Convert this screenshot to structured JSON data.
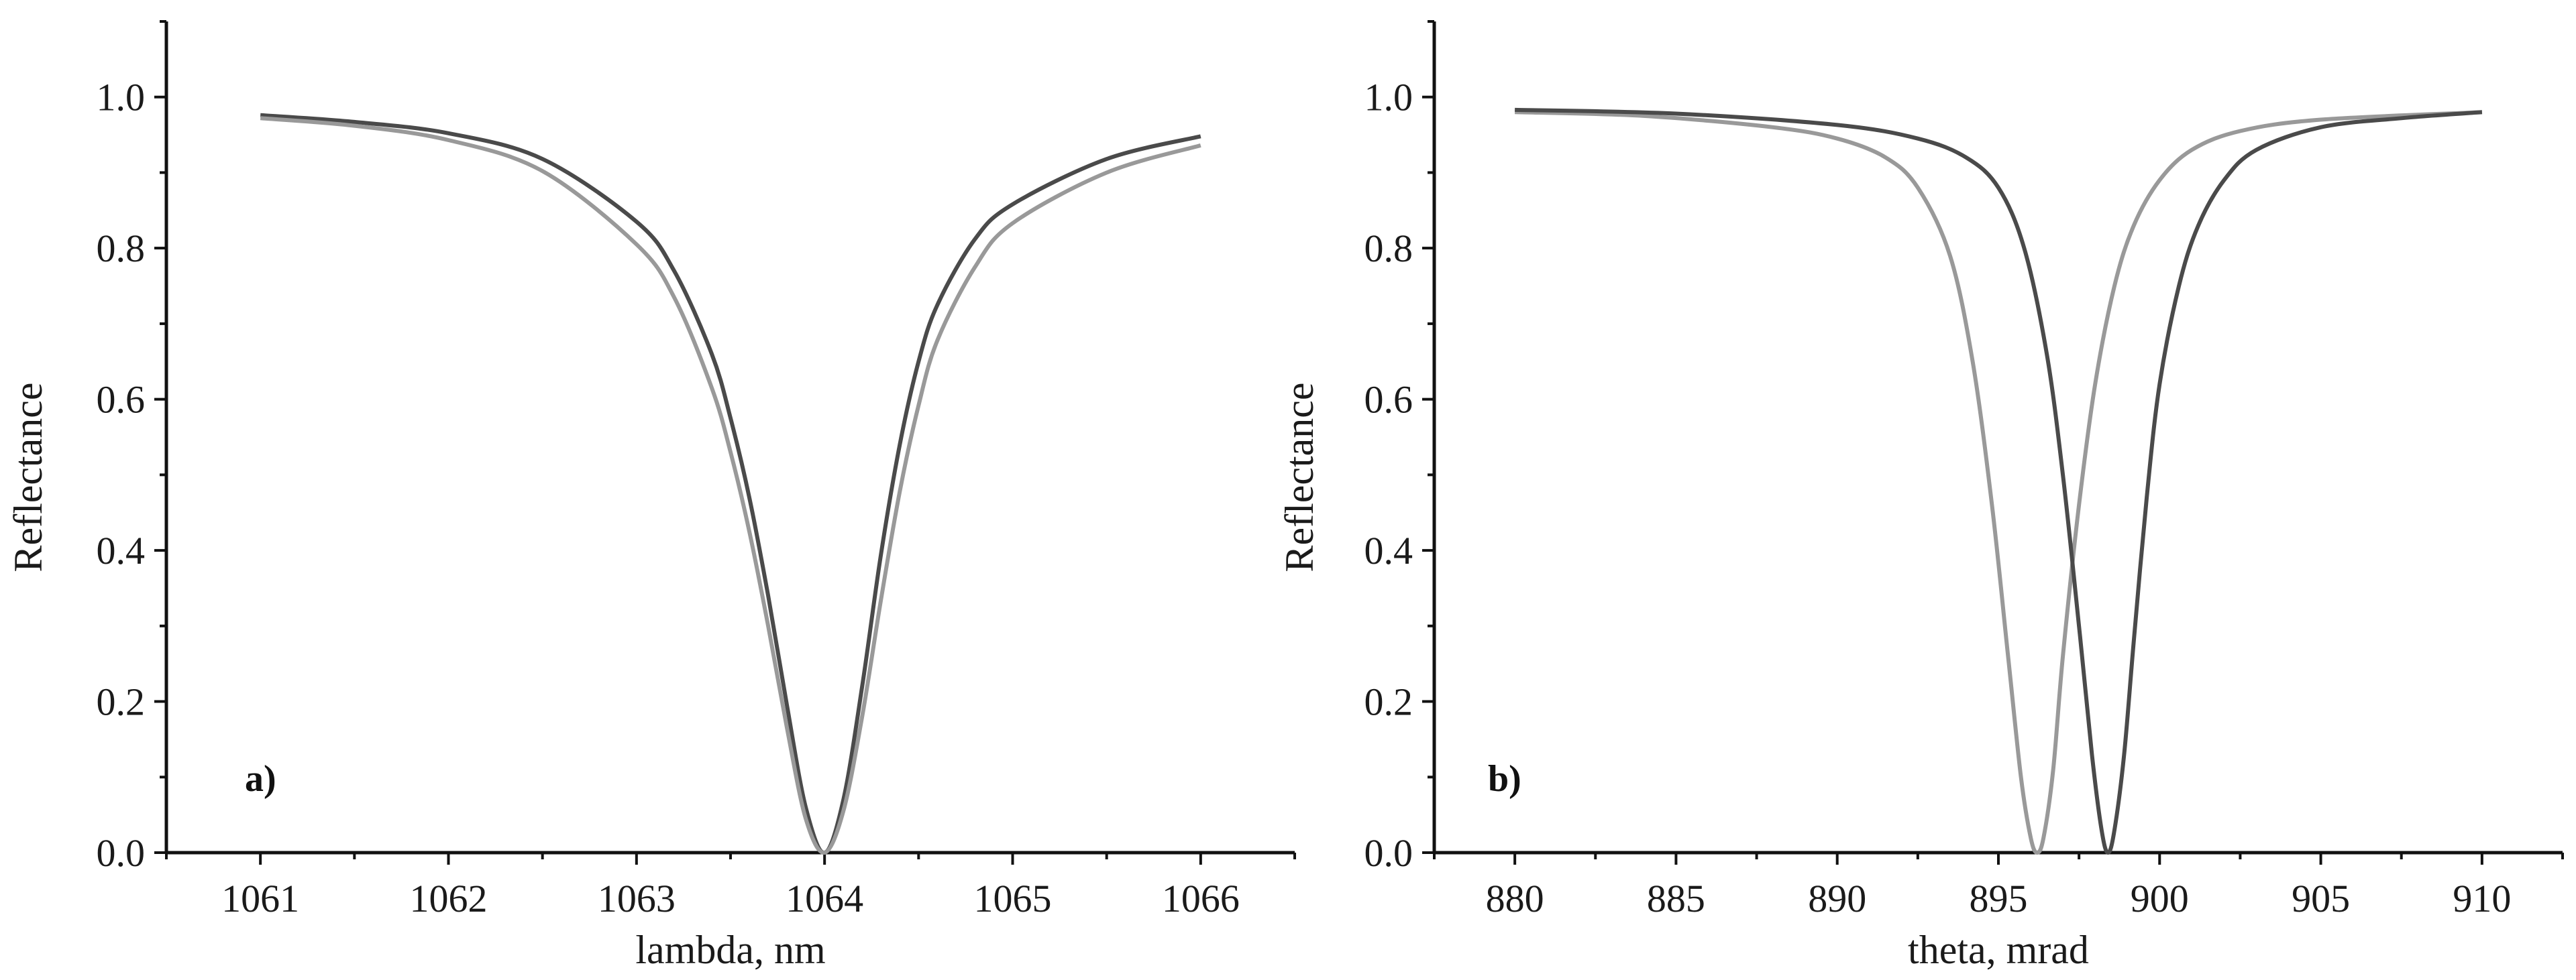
{
  "chart_data": [
    {
      "type": "line",
      "panel_label": "a)",
      "xlabel": "lambda, nm",
      "ylabel": "Reflectance",
      "xlim": [
        1060.5,
        1066.5
      ],
      "ylim": [
        0.0,
        1.1
      ],
      "xticks": [
        1061,
        1062,
        1063,
        1064,
        1065,
        1066
      ],
      "xtick_labels": [
        "1061",
        "1062",
        "1063",
        "1064",
        "1065",
        "1066"
      ],
      "yticks": [
        0.0,
        0.2,
        0.4,
        0.6,
        0.8,
        1.0
      ],
      "ytick_labels": [
        "0.0",
        "0.2",
        "0.4",
        "0.6",
        "0.8",
        "1.0"
      ],
      "series": [
        {
          "name": "dark",
          "color": "#4a4a4a",
          "x": [
            1061.0,
            1061.5,
            1062.0,
            1062.5,
            1063.0,
            1063.2,
            1063.4,
            1063.5,
            1063.6,
            1063.7,
            1063.8,
            1063.9,
            1064.0,
            1064.1,
            1064.2,
            1064.3,
            1064.4,
            1064.5,
            1064.6,
            1064.8,
            1065.0,
            1065.5,
            1066.0
          ],
          "y": [
            0.976,
            0.967,
            0.952,
            0.918,
            0.835,
            0.77,
            0.66,
            0.575,
            0.47,
            0.34,
            0.195,
            0.06,
            0.0,
            0.07,
            0.22,
            0.395,
            0.54,
            0.65,
            0.725,
            0.812,
            0.858,
            0.918,
            0.948
          ]
        },
        {
          "name": "light",
          "color": "#999999",
          "x": [
            1061.0,
            1061.5,
            1062.0,
            1062.5,
            1063.0,
            1063.2,
            1063.4,
            1063.5,
            1063.6,
            1063.7,
            1063.8,
            1063.9,
            1064.0,
            1064.1,
            1064.2,
            1064.3,
            1064.4,
            1064.5,
            1064.6,
            1064.8,
            1065.0,
            1065.5,
            1066.0
          ],
          "y": [
            0.972,
            0.962,
            0.943,
            0.902,
            0.805,
            0.735,
            0.615,
            0.53,
            0.425,
            0.3,
            0.165,
            0.045,
            0.0,
            0.055,
            0.18,
            0.335,
            0.478,
            0.592,
            0.678,
            0.775,
            0.833,
            0.9,
            0.936
          ]
        }
      ]
    },
    {
      "type": "line",
      "panel_label": "b)",
      "xlabel": "theta, mrad",
      "ylabel": "Reflectance",
      "xlim": [
        877.5,
        912.5
      ],
      "ylim": [
        0.0,
        1.1
      ],
      "xticks": [
        880,
        885,
        890,
        895,
        900,
        905,
        910
      ],
      "xtick_labels": [
        "880",
        "885",
        "890",
        "895",
        "900",
        "905",
        "910"
      ],
      "yticks": [
        0.0,
        0.2,
        0.4,
        0.6,
        0.8,
        1.0
      ],
      "ytick_labels": [
        "0.0",
        "0.2",
        "0.4",
        "0.6",
        "0.8",
        "1.0"
      ],
      "series": [
        {
          "name": "light",
          "color": "#999999",
          "x": [
            880.0,
            884.0,
            888.0,
            890.0,
            891.5,
            892.5,
            893.5,
            894.2,
            894.8,
            895.3,
            895.7,
            896.0,
            896.2,
            896.4,
            896.7,
            897.0,
            897.5,
            898.0,
            898.6,
            899.2,
            900.0,
            901.0,
            902.5,
            905.0,
            910.0
          ],
          "y": [
            0.98,
            0.975,
            0.96,
            0.945,
            0.92,
            0.88,
            0.79,
            0.65,
            0.46,
            0.26,
            0.1,
            0.02,
            0.0,
            0.02,
            0.11,
            0.26,
            0.46,
            0.62,
            0.75,
            0.83,
            0.89,
            0.93,
            0.955,
            0.97,
            0.98
          ]
        },
        {
          "name": "dark",
          "color": "#4a4a4a",
          "x": [
            880.0,
            885.0,
            890.0,
            892.5,
            894.0,
            895.0,
            895.8,
            896.5,
            897.0,
            897.5,
            897.9,
            898.2,
            898.4,
            898.6,
            898.9,
            899.2,
            899.6,
            900.0,
            900.6,
            901.2,
            902.0,
            903.0,
            905.0,
            907.5,
            910.0
          ],
          "y": [
            0.983,
            0.978,
            0.963,
            0.945,
            0.92,
            0.88,
            0.8,
            0.66,
            0.5,
            0.3,
            0.13,
            0.03,
            0.0,
            0.03,
            0.13,
            0.28,
            0.47,
            0.62,
            0.75,
            0.83,
            0.89,
            0.93,
            0.96,
            0.972,
            0.98
          ]
        }
      ]
    }
  ]
}
